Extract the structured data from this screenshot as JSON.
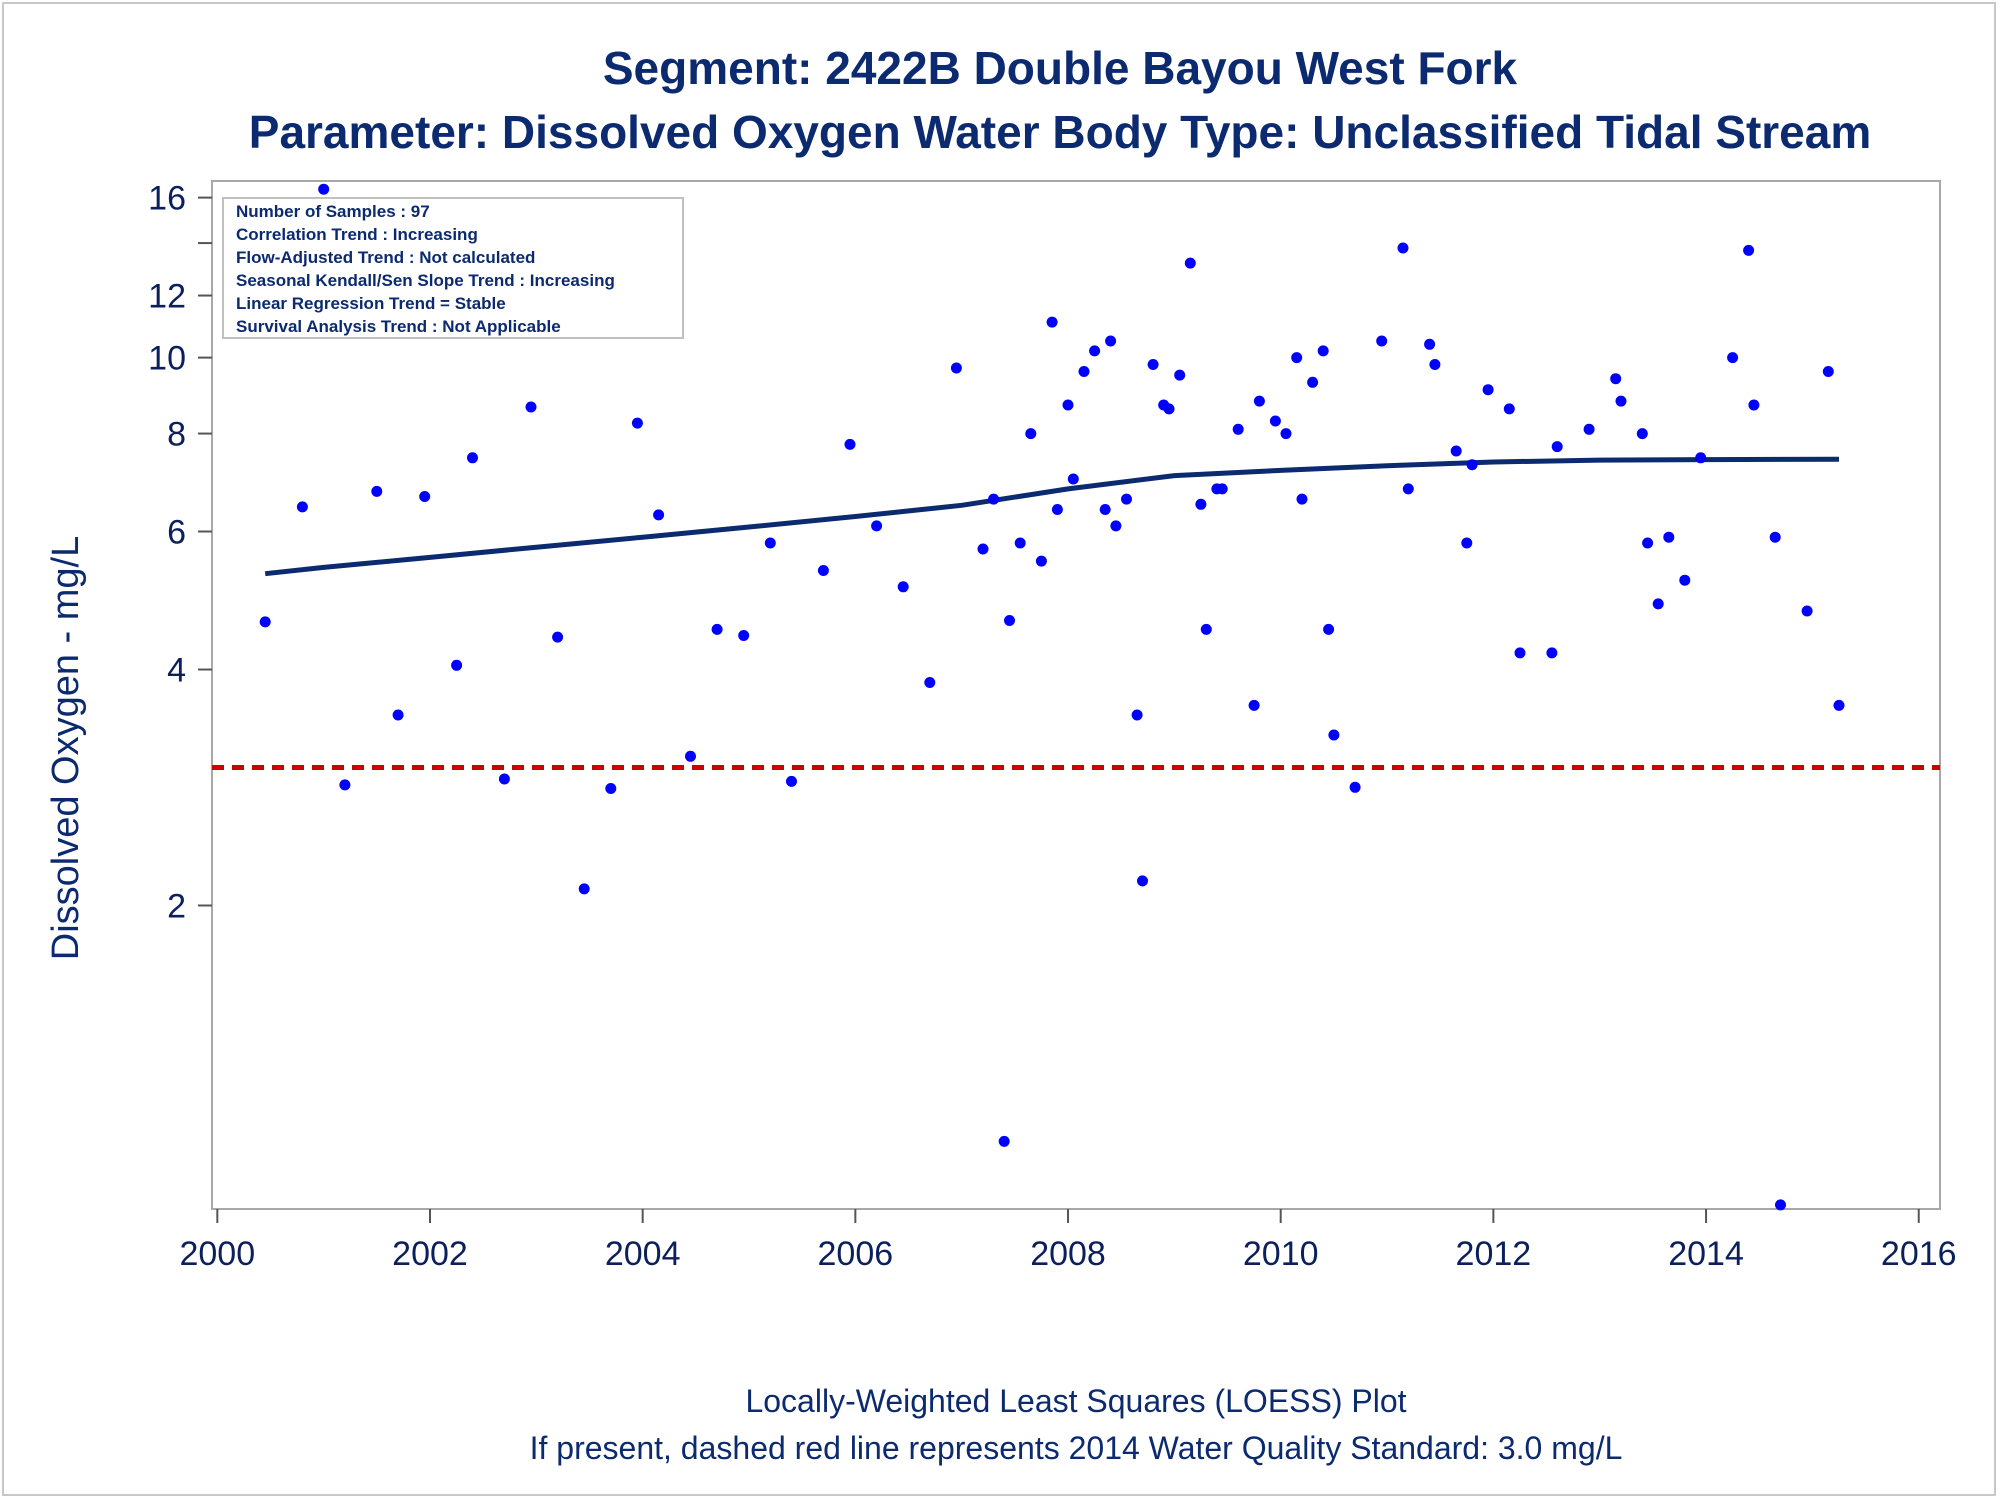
{
  "chart_data": {
    "type": "scatter",
    "title": "Segment: 2422B  Double Bayou West Fork",
    "subtitle": "Parameter: Dissolved Oxygen   Water Body Type: Unclassified Tidal Stream",
    "xlabel": "",
    "ylabel": "Dissolved Oxygen - mg/L",
    "y_scale": "log",
    "xlim": [
      1999.95,
      2016.2
    ],
    "ylim": [
      0.82,
      16.8
    ],
    "x_ticks": [
      2000,
      2002,
      2004,
      2006,
      2008,
      2010,
      2012,
      2014,
      2016
    ],
    "y_ticks": [
      2,
      4,
      6,
      8,
      10,
      12,
      16
    ],
    "y_minor_ticks": [
      14
    ],
    "grid": false,
    "info_box": {
      "position": "top-left",
      "lines": [
        "Number of Samples : 97",
        "Correlation Trend : Increasing",
        "Flow-Adjusted Trend : Not calculated",
        "Seasonal Kendall/Sen Slope Trend : Increasing",
        "Linear Regression Trend = Stable",
        "Survival Analysis Trend : Not Applicable"
      ]
    },
    "standard_line": {
      "value": 3.0,
      "color": "#cc0000",
      "style": "dashed"
    },
    "loess": {
      "color": "#0b2a6f",
      "x": [
        2000.45,
        2001,
        2002,
        2003,
        2004,
        2005,
        2006,
        2007,
        2008,
        2009,
        2010,
        2011,
        2012,
        2013,
        2014,
        2015.25
      ],
      "y": [
        5.3,
        5.4,
        5.56,
        5.73,
        5.9,
        6.08,
        6.27,
        6.48,
        6.8,
        7.07,
        7.18,
        7.28,
        7.36,
        7.4,
        7.41,
        7.42
      ]
    },
    "points_color": "#0000ff",
    "points": [
      {
        "x": 2000.45,
        "y": 4.6
      },
      {
        "x": 2000.8,
        "y": 6.45
      },
      {
        "x": 2001.0,
        "y": 16.4
      },
      {
        "x": 2001.2,
        "y": 2.85
      },
      {
        "x": 2001.5,
        "y": 6.75
      },
      {
        "x": 2001.7,
        "y": 3.5
      },
      {
        "x": 2001.95,
        "y": 6.65
      },
      {
        "x": 2002.25,
        "y": 4.05
      },
      {
        "x": 2002.4,
        "y": 7.45
      },
      {
        "x": 2002.7,
        "y": 2.9
      },
      {
        "x": 2002.95,
        "y": 8.65
      },
      {
        "x": 2003.2,
        "y": 4.4
      },
      {
        "x": 2003.45,
        "y": 2.1
      },
      {
        "x": 2003.7,
        "y": 2.82
      },
      {
        "x": 2003.95,
        "y": 8.25
      },
      {
        "x": 2004.15,
        "y": 6.3
      },
      {
        "x": 2004.45,
        "y": 3.1
      },
      {
        "x": 2004.7,
        "y": 4.5
      },
      {
        "x": 2004.95,
        "y": 4.42
      },
      {
        "x": 2005.2,
        "y": 5.8
      },
      {
        "x": 2005.4,
        "y": 2.88
      },
      {
        "x": 2005.7,
        "y": 5.35
      },
      {
        "x": 2005.95,
        "y": 7.75
      },
      {
        "x": 2006.2,
        "y": 6.1
      },
      {
        "x": 2006.45,
        "y": 5.1
      },
      {
        "x": 2006.7,
        "y": 3.85
      },
      {
        "x": 2006.95,
        "y": 9.7
      },
      {
        "x": 2007.2,
        "y": 5.7
      },
      {
        "x": 2007.3,
        "y": 6.6
      },
      {
        "x": 2007.4,
        "y": 1.0
      },
      {
        "x": 2007.45,
        "y": 4.62
      },
      {
        "x": 2007.55,
        "y": 5.8
      },
      {
        "x": 2007.65,
        "y": 8.0
      },
      {
        "x": 2007.75,
        "y": 5.5
      },
      {
        "x": 2007.85,
        "y": 11.1
      },
      {
        "x": 2007.9,
        "y": 6.4
      },
      {
        "x": 2008.0,
        "y": 8.7
      },
      {
        "x": 2008.05,
        "y": 7.0
      },
      {
        "x": 2008.15,
        "y": 9.6
      },
      {
        "x": 2008.25,
        "y": 10.2
      },
      {
        "x": 2008.35,
        "y": 6.4
      },
      {
        "x": 2008.4,
        "y": 10.5
      },
      {
        "x": 2008.45,
        "y": 6.1
      },
      {
        "x": 2008.55,
        "y": 6.6
      },
      {
        "x": 2008.65,
        "y": 3.5
      },
      {
        "x": 2008.7,
        "y": 2.15
      },
      {
        "x": 2008.8,
        "y": 9.8
      },
      {
        "x": 2008.9,
        "y": 8.7
      },
      {
        "x": 2008.95,
        "y": 8.6
      },
      {
        "x": 2009.05,
        "y": 9.5
      },
      {
        "x": 2009.15,
        "y": 13.2
      },
      {
        "x": 2009.25,
        "y": 6.5
      },
      {
        "x": 2009.3,
        "y": 4.5
      },
      {
        "x": 2009.4,
        "y": 6.8
      },
      {
        "x": 2009.45,
        "y": 6.8
      },
      {
        "x": 2009.6,
        "y": 8.1
      },
      {
        "x": 2009.75,
        "y": 3.6
      },
      {
        "x": 2009.8,
        "y": 8.8
      },
      {
        "x": 2009.95,
        "y": 8.3
      },
      {
        "x": 2010.05,
        "y": 8.0
      },
      {
        "x": 2010.15,
        "y": 10.0
      },
      {
        "x": 2010.2,
        "y": 6.6
      },
      {
        "x": 2010.3,
        "y": 9.3
      },
      {
        "x": 2010.4,
        "y": 10.2
      },
      {
        "x": 2010.45,
        "y": 4.5
      },
      {
        "x": 2010.5,
        "y": 3.3
      },
      {
        "x": 2010.7,
        "y": 2.83
      },
      {
        "x": 2010.95,
        "y": 10.5
      },
      {
        "x": 2011.15,
        "y": 13.8
      },
      {
        "x": 2011.2,
        "y": 6.8
      },
      {
        "x": 2011.4,
        "y": 10.4
      },
      {
        "x": 2011.45,
        "y": 9.8
      },
      {
        "x": 2011.65,
        "y": 7.6
      },
      {
        "x": 2011.75,
        "y": 5.8
      },
      {
        "x": 2011.8,
        "y": 7.3
      },
      {
        "x": 2011.95,
        "y": 9.1
      },
      {
        "x": 2012.15,
        "y": 8.6
      },
      {
        "x": 2012.25,
        "y": 4.2
      },
      {
        "x": 2012.55,
        "y": 4.2
      },
      {
        "x": 2012.6,
        "y": 7.7
      },
      {
        "x": 2012.9,
        "y": 8.1
      },
      {
        "x": 2013.15,
        "y": 9.4
      },
      {
        "x": 2013.2,
        "y": 8.8
      },
      {
        "x": 2013.4,
        "y": 8.0
      },
      {
        "x": 2013.45,
        "y": 5.8
      },
      {
        "x": 2013.55,
        "y": 4.85
      },
      {
        "x": 2013.65,
        "y": 5.9
      },
      {
        "x": 2013.8,
        "y": 5.2
      },
      {
        "x": 2013.95,
        "y": 7.45
      },
      {
        "x": 2014.25,
        "y": 10.0
      },
      {
        "x": 2014.4,
        "y": 13.7
      },
      {
        "x": 2014.45,
        "y": 8.7
      },
      {
        "x": 2014.65,
        "y": 5.9
      },
      {
        "x": 2014.7,
        "y": 0.83
      },
      {
        "x": 2014.95,
        "y": 4.75
      },
      {
        "x": 2015.15,
        "y": 9.6
      },
      {
        "x": 2015.25,
        "y": 3.6
      }
    ],
    "footnotes": [
      "Locally-Weighted Least Squares (LOESS) Plot",
      "If present, dashed red line represents 2014 Water Quality Standard: 3.0 mg/L"
    ]
  }
}
